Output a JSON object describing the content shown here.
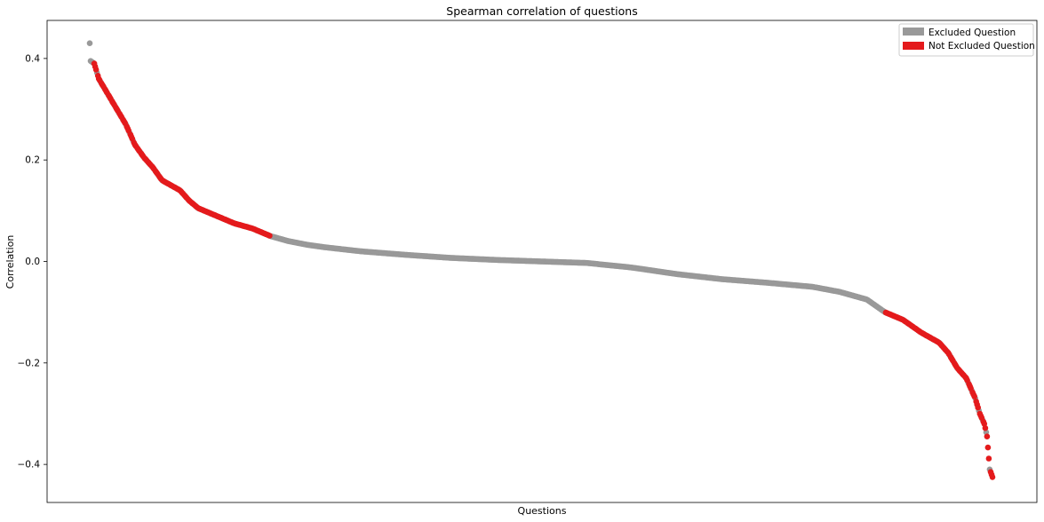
{
  "chart_data": {
    "type": "scatter",
    "title": "Spearman correlation of questions",
    "xlabel": "Questions",
    "ylabel": "Correlation",
    "ylim": [
      -0.475,
      0.475
    ],
    "xlim": [
      0,
      1000
    ],
    "yticks": [
      0.4,
      0.2,
      0.0,
      -0.2,
      -0.4
    ],
    "ytick_labels": [
      "0.4",
      "0.2",
      "0.0",
      "−0.2",
      "−0.4"
    ],
    "xticks_shown": false,
    "grid": false,
    "legend": {
      "placement": "top-right",
      "entries": [
        {
          "label": "Excluded Question",
          "color": "#999999"
        },
        {
          "label": "Not Excluded Question",
          "color": "#e41a1c"
        }
      ]
    },
    "point_count": 1000,
    "value_profile": {
      "x": [
        0,
        1,
        5,
        10,
        20,
        30,
        40,
        50,
        60,
        70,
        80,
        90,
        100,
        110,
        120,
        140,
        160,
        180,
        200,
        220,
        240,
        260,
        300,
        350,
        400,
        450,
        500,
        550,
        600,
        650,
        700,
        750,
        800,
        830,
        860,
        880,
        900,
        920,
        940,
        950,
        960,
        970,
        980,
        985,
        990,
        993,
        996,
        999
      ],
      "y": [
        0.43,
        0.395,
        0.39,
        0.36,
        0.33,
        0.3,
        0.27,
        0.23,
        0.205,
        0.185,
        0.16,
        0.15,
        0.14,
        0.12,
        0.105,
        0.09,
        0.075,
        0.065,
        0.05,
        0.04,
        0.033,
        0.028,
        0.02,
        0.013,
        0.007,
        0.003,
        0.0,
        -0.003,
        -0.012,
        -0.025,
        -0.035,
        -0.042,
        -0.05,
        -0.06,
        -0.075,
        -0.1,
        -0.115,
        -0.14,
        -0.16,
        -0.18,
        -0.21,
        -0.23,
        -0.27,
        -0.3,
        -0.32,
        -0.345,
        -0.41,
        -0.425
      ]
    },
    "not_excluded_ranges": [
      [
        5,
        200
      ],
      [
        880,
        999
      ]
    ],
    "excluded_in_not_excluded_region_every": 4
  }
}
